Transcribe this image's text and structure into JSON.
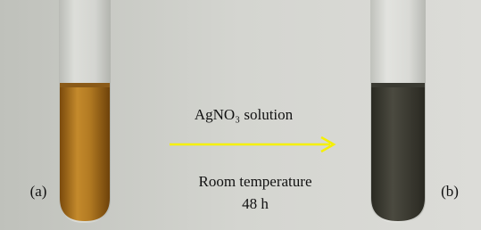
{
  "labels": {
    "left": "(a)",
    "right": "(b)"
  },
  "reaction": {
    "reagent": "AgNO₃ solution",
    "condition": "Room temperature",
    "time": "48 h"
  }
}
